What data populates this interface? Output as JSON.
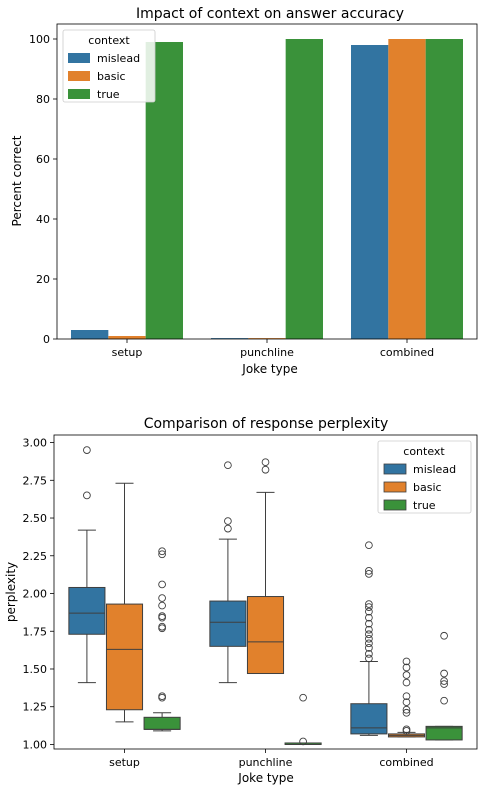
{
  "colors": {
    "mislead": "#3274a1",
    "basic": "#e1812c",
    "true": "#3a923a",
    "edge": "#3f3f3f"
  },
  "chart_data": [
    {
      "type": "bar",
      "title": "Impact of context on answer accuracy",
      "xlabel": "Joke type",
      "ylabel": "Percent correct",
      "ylim": [
        0,
        105
      ],
      "yticks": [
        0,
        20,
        40,
        60,
        80,
        100
      ],
      "categories": [
        "setup",
        "punchline",
        "combined"
      ],
      "legend": {
        "title": "context",
        "placement": "top-left",
        "entries": [
          "mislead",
          "basic",
          "true"
        ]
      },
      "series": [
        {
          "name": "mislead",
          "values": [
            3,
            0.3,
            98
          ]
        },
        {
          "name": "basic",
          "values": [
            1,
            0.3,
            100
          ]
        },
        {
          "name": "true",
          "values": [
            99,
            100,
            100
          ]
        }
      ],
      "grid": false
    },
    {
      "type": "box",
      "title": "Comparison of response perplexity",
      "xlabel": "Joke type",
      "ylabel": "perplexity",
      "ylim": [
        0.97,
        3.05
      ],
      "yticks": [
        "1.00",
        "1.25",
        "1.50",
        "1.75",
        "2.00",
        "2.25",
        "2.50",
        "2.75",
        "3.00"
      ],
      "categories": [
        "setup",
        "punchline",
        "combined"
      ],
      "legend": {
        "title": "context",
        "placement": "top-right",
        "entries": [
          "mislead",
          "basic",
          "true"
        ]
      },
      "series": [
        {
          "name": "mislead",
          "boxes": [
            {
              "whisker_low": 1.41,
              "q1": 1.73,
              "median": 1.87,
              "q3": 2.04,
              "whisker_high": 2.42,
              "outliers": [
                2.65,
                2.95
              ]
            },
            {
              "whisker_low": 1.41,
              "q1": 1.65,
              "median": 1.81,
              "q3": 1.95,
              "whisker_high": 2.36,
              "outliers": [
                2.43,
                2.48,
                2.85
              ]
            },
            {
              "whisker_low": 1.06,
              "q1": 1.07,
              "median": 1.11,
              "q3": 1.27,
              "whisker_high": 1.55,
              "outliers": [
                1.57,
                1.6,
                1.64,
                1.67,
                1.7,
                1.73,
                1.76,
                1.8,
                1.84,
                1.88,
                1.91,
                1.93,
                2.13,
                2.15,
                2.32
              ]
            }
          ]
        },
        {
          "name": "basic",
          "boxes": [
            {
              "whisker_low": 1.15,
              "q1": 1.23,
              "median": 1.63,
              "q3": 1.93,
              "whisker_high": 2.73,
              "outliers": []
            },
            {
              "whisker_low": 1.47,
              "q1": 1.47,
              "median": 1.68,
              "q3": 1.98,
              "whisker_high": 2.67,
              "outliers": [
                2.82,
                2.87
              ]
            },
            {
              "whisker_low": 1.05,
              "q1": 1.05,
              "median": 1.06,
              "q3": 1.07,
              "whisker_high": 1.08,
              "outliers": [
                1.09,
                1.1,
                1.21,
                1.23,
                1.28,
                1.32,
                1.41,
                1.46,
                1.51,
                1.55
              ]
            }
          ]
        },
        {
          "name": "true",
          "boxes": [
            {
              "whisker_low": 1.09,
              "q1": 1.1,
              "median": 1.1,
              "q3": 1.18,
              "whisker_high": 1.21,
              "outliers": [
                1.31,
                1.32,
                1.77,
                1.78,
                1.84,
                1.85,
                1.92,
                1.97,
                2.06,
                2.26,
                2.28
              ]
            },
            {
              "whisker_low": 1.0,
              "q1": 1.0,
              "median": 1.0,
              "q3": 1.01,
              "whisker_high": 1.01,
              "outliers": [
                1.02,
                1.31
              ]
            },
            {
              "whisker_low": 1.03,
              "q1": 1.03,
              "median": 1.11,
              "q3": 1.12,
              "whisker_high": 1.12,
              "outliers": [
                1.29,
                1.4,
                1.42,
                1.47,
                1.72
              ]
            }
          ]
        }
      ],
      "grid": false
    }
  ]
}
